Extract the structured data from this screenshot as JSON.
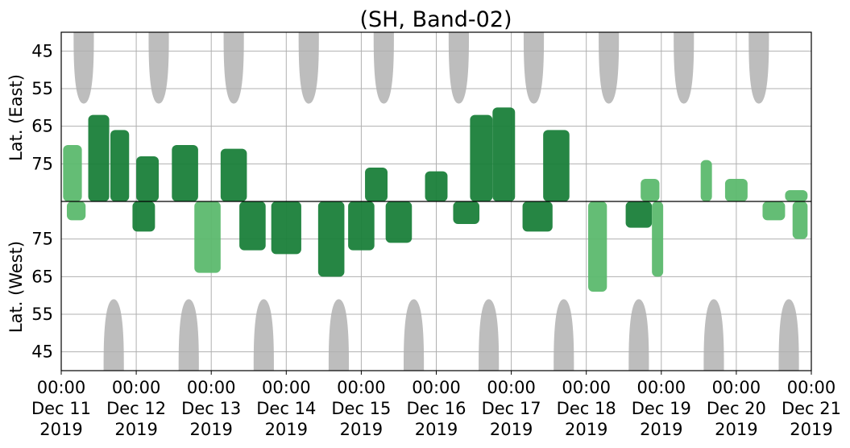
{
  "chart_data": {
    "type": "heatmap",
    "title": "(SH, Band-02)",
    "ylabel_top": "Lat. (East)",
    "ylabel_bottom": "Lat. (West)",
    "y_top_ticks": [
      "45",
      "55",
      "65",
      "75"
    ],
    "y_bottom_ticks": [
      "75",
      "65",
      "55",
      "45"
    ],
    "ylim_top": [
      40,
      85
    ],
    "ylim_bottom": [
      85,
      40
    ],
    "x_ticks": [
      {
        "time": "00:00",
        "date": "Dec 11",
        "year": "2019"
      },
      {
        "time": "00:00",
        "date": "Dec 12",
        "year": "2019"
      },
      {
        "time": "00:00",
        "date": "Dec 13",
        "year": "2019"
      },
      {
        "time": "00:00",
        "date": "Dec 14",
        "year": "2019"
      },
      {
        "time": "00:00",
        "date": "Dec 15",
        "year": "2019"
      },
      {
        "time": "00:00",
        "date": "Dec 16",
        "year": "2019"
      },
      {
        "time": "00:00",
        "date": "Dec 17",
        "year": "2019"
      },
      {
        "time": "00:00",
        "date": "Dec 18",
        "year": "2019"
      },
      {
        "time": "00:00",
        "date": "Dec 19",
        "year": "2019"
      },
      {
        "time": "00:00",
        "date": "Dec 20",
        "year": "2019"
      },
      {
        "time": "00:00",
        "date": "Dec 21",
        "year": "2019"
      }
    ],
    "xlim": [
      "2019-12-11 00:00",
      "2019-12-21 00:00"
    ],
    "grid": true,
    "colors": {
      "activity_strong": "#1a7f3a",
      "activity_weak": "#5cb96e",
      "no_coverage": "#bdbdbd",
      "grid": "#b0b0b0"
    },
    "no_coverage_east_days": [
      11.3,
      12.3,
      13.3,
      14.3,
      15.3,
      16.3,
      17.3,
      18.3,
      19.3,
      20.3
    ],
    "no_coverage_west_days": [
      11.7,
      12.7,
      13.7,
      14.7,
      15.7,
      16.7,
      17.7,
      18.7,
      19.7,
      20.7
    ],
    "activity_blobs": [
      {
        "hemi": "east",
        "day": 11.15,
        "dur": 0.25,
        "lat_min": 70,
        "lat_max": 85,
        "level": "weak"
      },
      {
        "hemi": "east",
        "day": 11.5,
        "dur": 0.28,
        "lat_min": 62,
        "lat_max": 85,
        "level": "strong"
      },
      {
        "hemi": "east",
        "day": 11.78,
        "dur": 0.25,
        "lat_min": 66,
        "lat_max": 85,
        "level": "strong"
      },
      {
        "hemi": "east",
        "day": 12.15,
        "dur": 0.3,
        "lat_min": 73,
        "lat_max": 85,
        "level": "strong"
      },
      {
        "hemi": "east",
        "day": 12.65,
        "dur": 0.35,
        "lat_min": 70,
        "lat_max": 85,
        "level": "strong"
      },
      {
        "hemi": "east",
        "day": 13.3,
        "dur": 0.35,
        "lat_min": 71,
        "lat_max": 85,
        "level": "strong"
      },
      {
        "hemi": "east",
        "day": 15.2,
        "dur": 0.3,
        "lat_min": 76,
        "lat_max": 85,
        "level": "strong"
      },
      {
        "hemi": "east",
        "day": 16.0,
        "dur": 0.3,
        "lat_min": 77,
        "lat_max": 85,
        "level": "strong"
      },
      {
        "hemi": "east",
        "day": 16.6,
        "dur": 0.3,
        "lat_min": 62,
        "lat_max": 85,
        "level": "strong"
      },
      {
        "hemi": "east",
        "day": 16.9,
        "dur": 0.3,
        "lat_min": 60,
        "lat_max": 85,
        "level": "strong"
      },
      {
        "hemi": "east",
        "day": 17.6,
        "dur": 0.35,
        "lat_min": 66,
        "lat_max": 85,
        "level": "strong"
      },
      {
        "hemi": "east",
        "day": 18.85,
        "dur": 0.25,
        "lat_min": 79,
        "lat_max": 85,
        "level": "weak"
      },
      {
        "hemi": "east",
        "day": 19.6,
        "dur": 0.15,
        "lat_min": 74,
        "lat_max": 85,
        "level": "weak"
      },
      {
        "hemi": "east",
        "day": 20.0,
        "dur": 0.3,
        "lat_min": 79,
        "lat_max": 85,
        "level": "weak"
      },
      {
        "hemi": "east",
        "day": 20.8,
        "dur": 0.3,
        "lat_min": 82,
        "lat_max": 85,
        "level": "weak"
      },
      {
        "hemi": "west",
        "day": 11.2,
        "dur": 0.25,
        "lat_min": 80,
        "lat_max": 85,
        "level": "weak"
      },
      {
        "hemi": "west",
        "day": 12.1,
        "dur": 0.3,
        "lat_min": 77,
        "lat_max": 85,
        "level": "strong"
      },
      {
        "hemi": "west",
        "day": 12.95,
        "dur": 0.35,
        "lat_min": 66,
        "lat_max": 85,
        "level": "weak"
      },
      {
        "hemi": "west",
        "day": 13.55,
        "dur": 0.35,
        "lat_min": 72,
        "lat_max": 85,
        "level": "strong"
      },
      {
        "hemi": "west",
        "day": 14.0,
        "dur": 0.4,
        "lat_min": 71,
        "lat_max": 85,
        "level": "strong"
      },
      {
        "hemi": "west",
        "day": 14.6,
        "dur": 0.35,
        "lat_min": 65,
        "lat_max": 85,
        "level": "strong"
      },
      {
        "hemi": "west",
        "day": 15.0,
        "dur": 0.35,
        "lat_min": 72,
        "lat_max": 85,
        "level": "strong"
      },
      {
        "hemi": "west",
        "day": 15.5,
        "dur": 0.35,
        "lat_min": 74,
        "lat_max": 85,
        "level": "strong"
      },
      {
        "hemi": "west",
        "day": 16.4,
        "dur": 0.35,
        "lat_min": 79,
        "lat_max": 85,
        "level": "strong"
      },
      {
        "hemi": "west",
        "day": 17.35,
        "dur": 0.4,
        "lat_min": 77,
        "lat_max": 85,
        "level": "strong"
      },
      {
        "hemi": "west",
        "day": 18.15,
        "dur": 0.25,
        "lat_min": 61,
        "lat_max": 85,
        "level": "weak"
      },
      {
        "hemi": "west",
        "day": 18.7,
        "dur": 0.35,
        "lat_min": 78,
        "lat_max": 85,
        "level": "strong"
      },
      {
        "hemi": "west",
        "day": 18.95,
        "dur": 0.15,
        "lat_min": 65,
        "lat_max": 85,
        "level": "weak"
      },
      {
        "hemi": "west",
        "day": 20.5,
        "dur": 0.3,
        "lat_min": 80,
        "lat_max": 85,
        "level": "weak"
      },
      {
        "hemi": "west",
        "day": 20.85,
        "dur": 0.2,
        "lat_min": 75,
        "lat_max": 85,
        "level": "weak"
      }
    ]
  }
}
